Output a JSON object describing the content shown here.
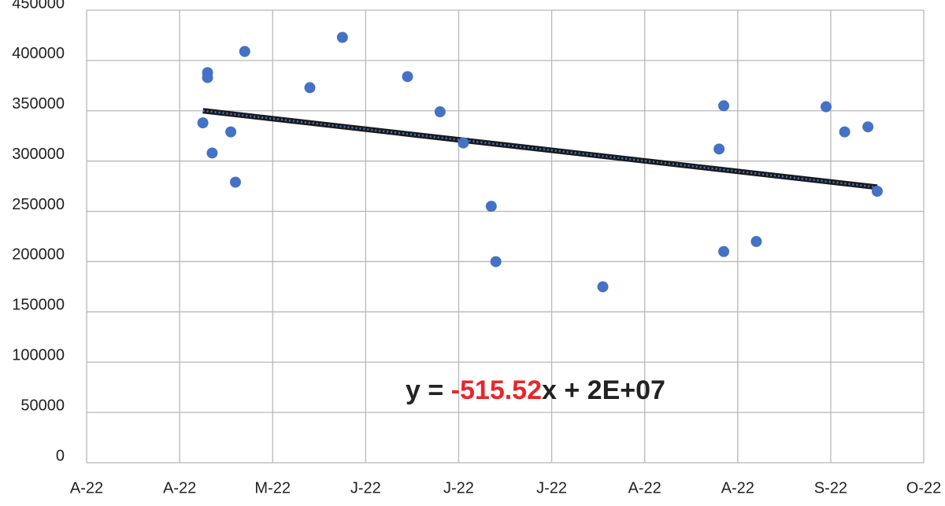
{
  "chart_data": {
    "type": "scatter",
    "x": [
      44686,
      44687,
      44687,
      44688,
      44692,
      44693,
      44695,
      44709,
      44716,
      44730,
      44737,
      44742,
      44748,
      44749,
      44772,
      44797,
      44798,
      44798,
      44805,
      44820,
      44824,
      44829,
      44831
    ],
    "series": [
      {
        "color": "#4472c4",
        "values": [
          338000,
          388000,
          383000,
          308000,
          329000,
          279000,
          409000,
          373000,
          423000,
          384000,
          349000,
          318000,
          255000,
          200000,
          175000,
          312000,
          355000,
          210000,
          220000,
          354000,
          329000,
          334000,
          270000
        ]
      }
    ],
    "trendline": {
      "x": [
        44686,
        44831
      ],
      "y": [
        350000,
        274000
      ],
      "color": "#1a1a1a"
    },
    "equation": {
      "prefix": "y = ",
      "slope": "-515.52",
      "suffix": "x + 2E+07",
      "slope_color": "#e8262b"
    },
    "xlim": [
      44661,
      44841
    ],
    "xticks": [
      {
        "value": 44661,
        "label": "A-22"
      },
      {
        "value": 44681,
        "label": "A-22"
      },
      {
        "value": 44701,
        "label": "M-22"
      },
      {
        "value": 44721,
        "label": "J-22"
      },
      {
        "value": 44741,
        "label": "J-22"
      },
      {
        "value": 44761,
        "label": "J-22"
      },
      {
        "value": 44781,
        "label": "A-22"
      },
      {
        "value": 44801,
        "label": "A-22"
      },
      {
        "value": 44821,
        "label": "S-22"
      },
      {
        "value": 44841,
        "label": "O-22"
      }
    ],
    "ylim": [
      0,
      450000
    ],
    "yticks": [
      0,
      50000,
      100000,
      150000,
      200000,
      250000,
      300000,
      350000,
      400000,
      450000
    ],
    "grid": true
  }
}
